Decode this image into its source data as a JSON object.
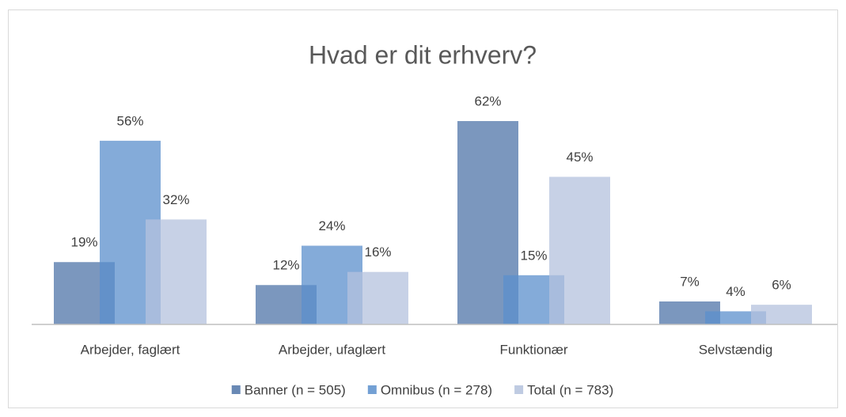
{
  "chart_data": {
    "type": "bar",
    "title": "Hvad er dit erhverv?",
    "categories": [
      "Arbejder, faglært",
      "Arbejder, ufaglært",
      "Funktionær",
      "Selvstændig"
    ],
    "series": [
      {
        "name": "Banner (n = 505)",
        "color": "#4f74a8",
        "values": [
          19,
          12,
          62,
          7
        ],
        "value_labels": [
          "19%",
          "12%",
          "62%",
          "7%"
        ]
      },
      {
        "name": "Omnibus (n = 278)",
        "color": "#5b8fcc",
        "values": [
          56,
          24,
          15,
          4
        ],
        "value_labels": [
          "56%",
          "24%",
          "15%",
          "4%"
        ]
      },
      {
        "name": "Total (n = 783)",
        "color": "#b4c2dd",
        "values": [
          32,
          16,
          45,
          6
        ],
        "value_labels": [
          "32%",
          "16%",
          "45%",
          "6%"
        ]
      }
    ],
    "legend": "bottom"
  }
}
